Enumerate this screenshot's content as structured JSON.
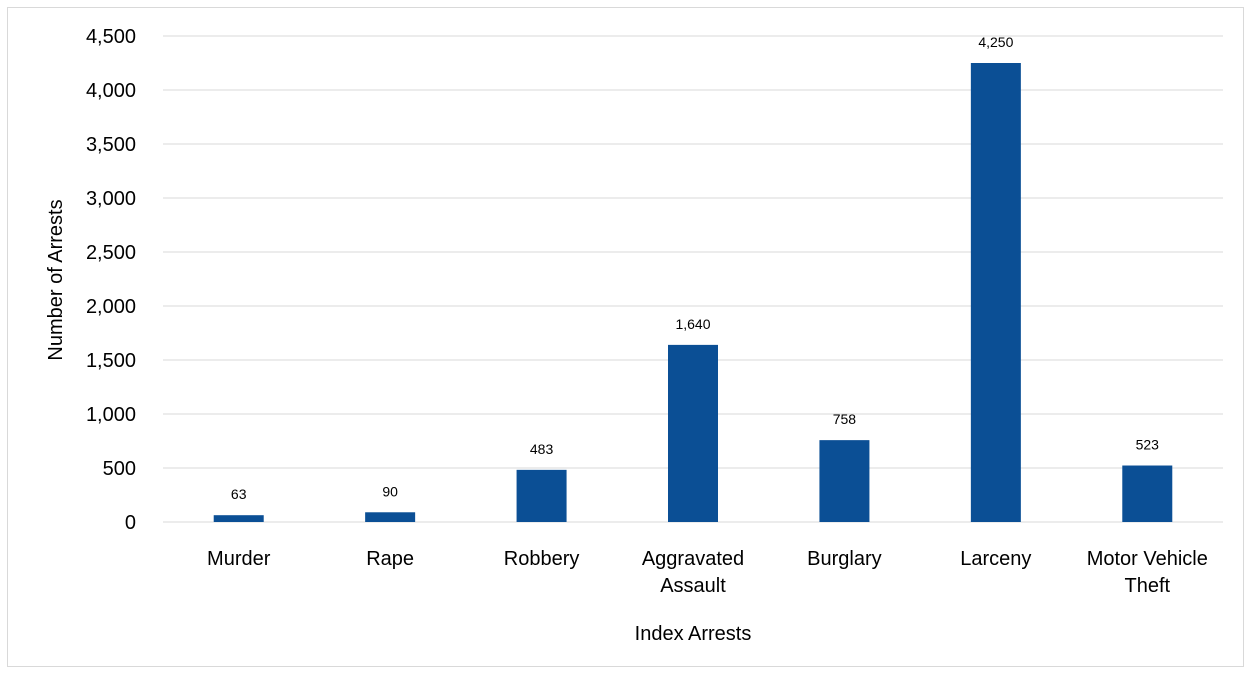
{
  "chart_data": {
    "type": "bar",
    "categories": [
      [
        "Murder"
      ],
      [
        "Rape"
      ],
      [
        "Robbery"
      ],
      [
        "Aggravated",
        "Assault"
      ],
      [
        "Burglary"
      ],
      [
        "Larceny"
      ],
      [
        "Motor Vehicle",
        "Theft"
      ]
    ],
    "values": [
      63,
      90,
      483,
      1640,
      758,
      4250,
      523
    ],
    "data_labels": [
      "63",
      "90",
      "483",
      "1,640",
      "758",
      "4,250",
      "523"
    ],
    "y_ticks": [
      "0",
      "500",
      "1,000",
      "1,500",
      "2,000",
      "2,500",
      "3,000",
      "3,500",
      "4,000",
      "4,500"
    ],
    "ylim": [
      0,
      4500
    ],
    "xlabel": "Index Arrests",
    "ylabel": "Number of Arrests",
    "title": "",
    "grid": true,
    "legend": "none",
    "bar_color": "#0b4f95",
    "grid_color": "#d9d9d9"
  }
}
